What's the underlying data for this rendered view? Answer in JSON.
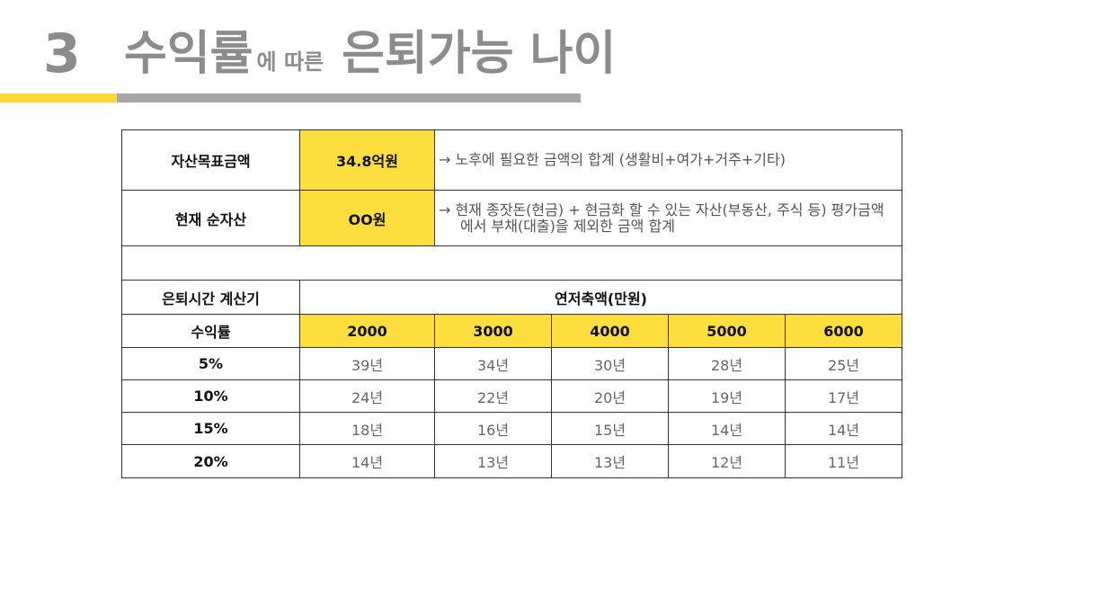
{
  "header": {
    "slide_number": "3",
    "title_part1": "수익률",
    "title_part2": "에 따른",
    "title_part3": "은퇴가능 나이"
  },
  "info": {
    "target_label": "자산목표금액",
    "target_value": "34.8억원",
    "target_note": "→ 노후에 필요한 금액의 합계 (생활비+여가+거주+기타)",
    "networth_label": "현재 순자산",
    "networth_value": "OO원",
    "networth_note_line1": "→ 현재 종잣돈(현금) + 현금화 할 수 있는 자산(부동산, 주식 등) 평가금액",
    "networth_note_line2": "에서 부채(대출)을 제외한 금액 합계"
  },
  "calculator": {
    "title": "은퇴시간 계산기",
    "savings_header": "연저축액(만원)",
    "rate_header": "수익률",
    "savings_amounts": [
      "2000",
      "3000",
      "4000",
      "5000",
      "6000"
    ],
    "rows": [
      {
        "rate": "5%",
        "years": [
          "39년",
          "34년",
          "30년",
          "28년",
          "25년"
        ]
      },
      {
        "rate": "10%",
        "years": [
          "24년",
          "22년",
          "20년",
          "19년",
          "17년"
        ]
      },
      {
        "rate": "15%",
        "years": [
          "18년",
          "16년",
          "15년",
          "14년",
          "14년"
        ]
      },
      {
        "rate": "20%",
        "years": [
          "14년",
          "13년",
          "13년",
          "12년",
          "11년"
        ]
      }
    ]
  },
  "colors": {
    "accent_yellow": "#fcdf3e",
    "title_gray": "#8c8c8c",
    "bar_gray": "#a6a6a6"
  }
}
